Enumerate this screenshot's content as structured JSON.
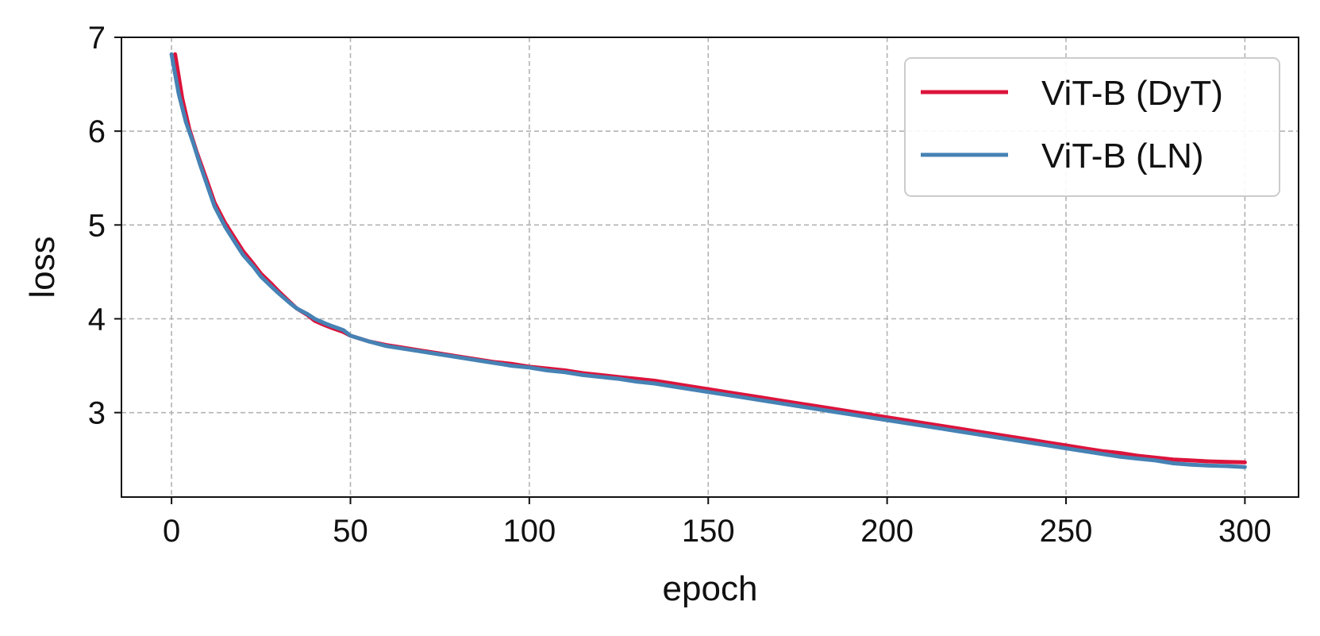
{
  "chart_data": {
    "type": "line",
    "title": "",
    "xlabel": "epoch",
    "ylabel": "loss",
    "xlim": [
      -14,
      315
    ],
    "ylim": [
      2.1,
      7.0
    ],
    "x_ticks": [
      0,
      50,
      100,
      150,
      200,
      250,
      300
    ],
    "y_ticks": [
      3,
      4,
      5,
      6,
      7
    ],
    "grid": true,
    "legend_position": "top-right",
    "series": [
      {
        "name": "ViT-B (DyT)",
        "color": "#dc143c",
        "points": [
          [
            1,
            6.82
          ],
          [
            3,
            6.35
          ],
          [
            5,
            6.02
          ],
          [
            7,
            5.78
          ],
          [
            10,
            5.46
          ],
          [
            12,
            5.24
          ],
          [
            15,
            5.02
          ],
          [
            18,
            4.84
          ],
          [
            20,
            4.72
          ],
          [
            23,
            4.58
          ],
          [
            25,
            4.48
          ],
          [
            28,
            4.37
          ],
          [
            30,
            4.29
          ],
          [
            33,
            4.18
          ],
          [
            35,
            4.11
          ],
          [
            38,
            4.04
          ],
          [
            40,
            3.98
          ],
          [
            43,
            3.93
          ],
          [
            45,
            3.9
          ],
          [
            48,
            3.86
          ],
          [
            50,
            3.82
          ],
          [
            55,
            3.76
          ],
          [
            60,
            3.72
          ],
          [
            65,
            3.69
          ],
          [
            70,
            3.66
          ],
          [
            75,
            3.63
          ],
          [
            80,
            3.6
          ],
          [
            85,
            3.57
          ],
          [
            90,
            3.54
          ],
          [
            95,
            3.52
          ],
          [
            100,
            3.49
          ],
          [
            105,
            3.47
          ],
          [
            110,
            3.45
          ],
          [
            115,
            3.42
          ],
          [
            120,
            3.4
          ],
          [
            125,
            3.38
          ],
          [
            130,
            3.36
          ],
          [
            135,
            3.34
          ],
          [
            140,
            3.31
          ],
          [
            145,
            3.28
          ],
          [
            150,
            3.25
          ],
          [
            155,
            3.22
          ],
          [
            160,
            3.19
          ],
          [
            165,
            3.16
          ],
          [
            170,
            3.13
          ],
          [
            175,
            3.1
          ],
          [
            180,
            3.07
          ],
          [
            185,
            3.04
          ],
          [
            190,
            3.01
          ],
          [
            195,
            2.98
          ],
          [
            200,
            2.95
          ],
          [
            205,
            2.92
          ],
          [
            210,
            2.89
          ],
          [
            215,
            2.86
          ],
          [
            220,
            2.83
          ],
          [
            225,
            2.8
          ],
          [
            230,
            2.77
          ],
          [
            235,
            2.74
          ],
          [
            240,
            2.71
          ],
          [
            245,
            2.68
          ],
          [
            250,
            2.65
          ],
          [
            255,
            2.62
          ],
          [
            260,
            2.59
          ],
          [
            265,
            2.57
          ],
          [
            270,
            2.54
          ],
          [
            275,
            2.52
          ],
          [
            280,
            2.5
          ],
          [
            285,
            2.49
          ],
          [
            290,
            2.48
          ],
          [
            295,
            2.475
          ],
          [
            300,
            2.47
          ]
        ]
      },
      {
        "name": "ViT-B (LN)",
        "color": "#4682b4",
        "points": [
          [
            0,
            6.82
          ],
          [
            2,
            6.4
          ],
          [
            4,
            6.1
          ],
          [
            6,
            5.88
          ],
          [
            8,
            5.64
          ],
          [
            10,
            5.42
          ],
          [
            12,
            5.2
          ],
          [
            15,
            4.98
          ],
          [
            18,
            4.8
          ],
          [
            20,
            4.68
          ],
          [
            23,
            4.55
          ],
          [
            25,
            4.45
          ],
          [
            28,
            4.34
          ],
          [
            30,
            4.27
          ],
          [
            33,
            4.17
          ],
          [
            35,
            4.11
          ],
          [
            38,
            4.05
          ],
          [
            40,
            4.0
          ],
          [
            43,
            3.95
          ],
          [
            45,
            3.92
          ],
          [
            48,
            3.88
          ],
          [
            50,
            3.82
          ],
          [
            55,
            3.76
          ],
          [
            60,
            3.71
          ],
          [
            65,
            3.68
          ],
          [
            70,
            3.65
          ],
          [
            75,
            3.62
          ],
          [
            80,
            3.59
          ],
          [
            85,
            3.56
          ],
          [
            90,
            3.53
          ],
          [
            95,
            3.5
          ],
          [
            100,
            3.48
          ],
          [
            105,
            3.45
          ],
          [
            110,
            3.43
          ],
          [
            115,
            3.4
          ],
          [
            120,
            3.38
          ],
          [
            125,
            3.36
          ],
          [
            130,
            3.33
          ],
          [
            135,
            3.31
          ],
          [
            140,
            3.28
          ],
          [
            145,
            3.25
          ],
          [
            150,
            3.22
          ],
          [
            155,
            3.19
          ],
          [
            160,
            3.16
          ],
          [
            165,
            3.13
          ],
          [
            170,
            3.1
          ],
          [
            175,
            3.07
          ],
          [
            180,
            3.04
          ],
          [
            185,
            3.01
          ],
          [
            190,
            2.98
          ],
          [
            195,
            2.95
          ],
          [
            200,
            2.92
          ],
          [
            205,
            2.89
          ],
          [
            210,
            2.86
          ],
          [
            215,
            2.83
          ],
          [
            220,
            2.8
          ],
          [
            225,
            2.77
          ],
          [
            230,
            2.74
          ],
          [
            235,
            2.71
          ],
          [
            240,
            2.68
          ],
          [
            245,
            2.65
          ],
          [
            250,
            2.62
          ],
          [
            255,
            2.59
          ],
          [
            260,
            2.56
          ],
          [
            265,
            2.53
          ],
          [
            270,
            2.51
          ],
          [
            275,
            2.49
          ],
          [
            280,
            2.46
          ],
          [
            285,
            2.445
          ],
          [
            290,
            2.435
          ],
          [
            295,
            2.43
          ],
          [
            300,
            2.42
          ]
        ]
      }
    ]
  }
}
